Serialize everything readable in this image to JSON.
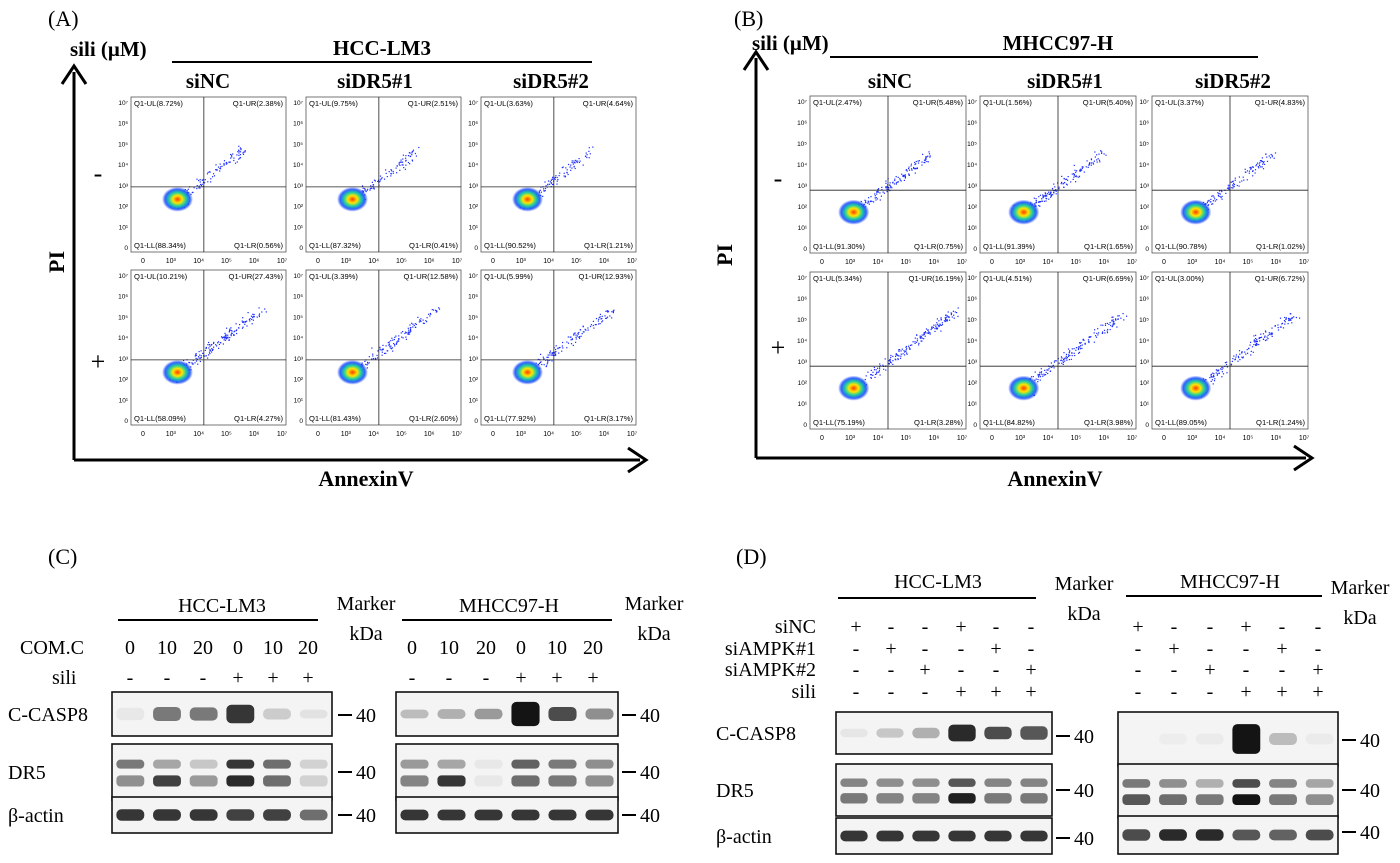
{
  "panelA": {
    "letter": "(A)",
    "treatment_label": "sili (μM)",
    "cell_line": "HCC-LM3",
    "columns": [
      "siNC",
      "siDR5#1",
      "siDR5#2"
    ],
    "row_markers": [
      "-",
      "+"
    ],
    "y_axis": "PI",
    "x_axis": "AnnexinV",
    "plots": [
      [
        "Q1-UL(8.72%)",
        "Q1-UR(2.38%)",
        "Q1-LL(88.34%)",
        "Q1-LR(0.56%)"
      ],
      [
        "Q1-UL(9.75%)",
        "Q1-UR(2.51%)",
        "Q1-LL(87.32%)",
        "Q1-LR(0.41%)"
      ],
      [
        "Q1-UL(3.63%)",
        "Q1-UR(4.64%)",
        "Q1-LL(90.52%)",
        "Q1-LR(1.21%)"
      ],
      [
        "Q1-UL(10.21%)",
        "Q1-UR(27.43%)",
        "Q1-LL(58.09%)",
        "Q1-LR(4.27%)"
      ],
      [
        "Q1-UL(3.39%)",
        "Q1-UR(12.58%)",
        "Q1-LL(81.43%)",
        "Q1-LR(2.60%)"
      ],
      [
        "Q1-UL(5.99%)",
        "Q1-UR(12.93%)",
        "Q1-LL(77.92%)",
        "Q1-LR(3.17%)"
      ]
    ]
  },
  "panelB": {
    "letter": "(B)",
    "treatment_label": "sili (μM)",
    "cell_line": "MHCC97-H",
    "columns": [
      "siNC",
      "siDR5#1",
      "siDR5#2"
    ],
    "row_markers": [
      "-",
      "+"
    ],
    "y_axis": "PI",
    "x_axis": "AnnexinV",
    "plots": [
      [
        "Q1-UL(2.47%)",
        "Q1-UR(5.48%)",
        "Q1-LL(91.30%)",
        "Q1-LR(0.75%)"
      ],
      [
        "Q1-UL(1.56%)",
        "Q1-UR(5.40%)",
        "Q1-LL(91.39%)",
        "Q1-LR(1.65%)"
      ],
      [
        "Q1-UL(3.37%)",
        "Q1-UR(4.83%)",
        "Q1-LL(90.78%)",
        "Q1-LR(1.02%)"
      ],
      [
        "Q1-UL(5.34%)",
        "Q1-UR(16.19%)",
        "Q1-LL(75.19%)",
        "Q1-LR(3.28%)"
      ],
      [
        "Q1-UL(4.51%)",
        "Q1-UR(6.69%)",
        "Q1-LL(84.82%)",
        "Q1-LR(3.98%)"
      ],
      [
        "Q1-UL(3.00%)",
        "Q1-UR(6.72%)",
        "Q1-LL(89.05%)",
        "Q1-LR(1.24%)"
      ]
    ]
  },
  "ticks": {
    "x": [
      "0",
      "10³",
      "10⁴",
      "10⁵",
      "10⁶",
      "10⁷"
    ],
    "y": [
      "10⁷",
      "10⁶",
      "10⁵",
      "10⁴",
      "10³",
      "10²",
      "10¹",
      "0"
    ]
  },
  "panelC": {
    "letter": "(C)",
    "groups": [
      "HCC-LM3",
      "MHCC97-H"
    ],
    "marker_label": [
      "Marker",
      "kDa"
    ],
    "row_labels": [
      "COM.C",
      "sili"
    ],
    "com_c": [
      "0",
      "10",
      "20",
      "0",
      "10",
      "20"
    ],
    "sili": [
      "-",
      "-",
      "-",
      "+",
      "+",
      "+"
    ],
    "blots": [
      "C-CASP8",
      "DR5",
      "β-actin"
    ],
    "kda": "40"
  },
  "panelD": {
    "letter": "(D)",
    "groups": [
      "HCC-LM3",
      "MHCC97-H"
    ],
    "marker_label": [
      "Marker",
      "kDa"
    ],
    "row_labels": [
      "siNC",
      "siAMPK#1",
      "siAMPK#2",
      "sili"
    ],
    "rows": [
      [
        "+",
        "-",
        "-",
        "+",
        "-",
        "-"
      ],
      [
        "-",
        "+",
        "-",
        "-",
        "+",
        "-"
      ],
      [
        "-",
        "-",
        "+",
        "-",
        "-",
        "+"
      ],
      [
        "-",
        "-",
        "-",
        "+",
        "+",
        "+"
      ]
    ],
    "blots": [
      "C-CASP8",
      "DR5",
      "β-actin"
    ],
    "kda": "40"
  }
}
